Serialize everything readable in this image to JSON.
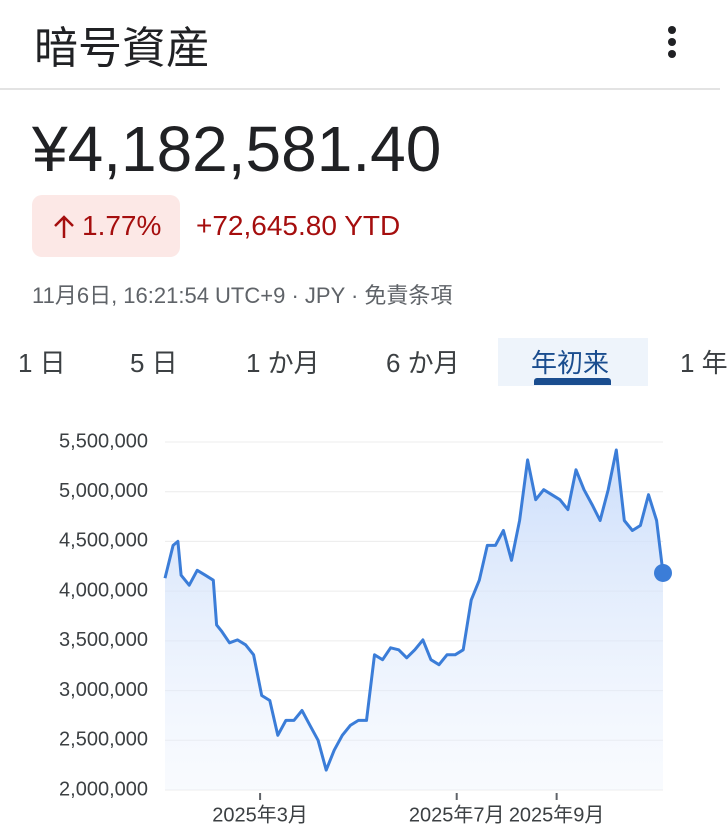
{
  "header": {
    "title": "暗号資産"
  },
  "quote": {
    "price": "¥4,182,581.40",
    "change_percent": "1.77%",
    "change_amount": "+72,645.80 YTD",
    "timestamp": "11月6日, 16:21:54 UTC+9 · JPY · 免責条項"
  },
  "tabs": {
    "items": [
      "1 日",
      "5 日",
      "1 か月",
      "6 か月",
      "年初来",
      "1 年"
    ],
    "selected": 4
  },
  "chart_data": {
    "type": "line",
    "x": [
      0,
      5,
      8,
      10,
      15,
      20,
      25,
      30,
      32,
      35,
      40,
      45,
      50,
      55,
      60,
      65,
      70,
      75,
      80,
      85,
      90,
      95,
      100,
      105,
      110,
      115,
      120,
      125,
      130,
      135,
      140,
      145,
      150,
      155,
      160,
      165,
      170,
      175,
      180,
      185,
      190,
      195,
      200,
      205,
      210,
      215,
      220,
      225,
      230,
      235,
      240,
      245,
      250,
      255,
      260,
      265,
      270,
      275,
      280,
      285,
      290,
      295,
      300,
      305,
      309
    ],
    "series": [
      {
        "color": "#3b7dd8",
        "values": [
          4130000,
          4460000,
          4500000,
          4160000,
          4060000,
          4210000,
          4160000,
          4110000,
          3660000,
          3600000,
          3480000,
          3510000,
          3460000,
          3360000,
          2950000,
          2900000,
          2550000,
          2700000,
          2700000,
          2800000,
          2650000,
          2500000,
          2200000,
          2400000,
          2550000,
          2650000,
          2700000,
          2700000,
          3360000,
          3310000,
          3430000,
          3410000,
          3330000,
          3410000,
          3510000,
          3310000,
          3260000,
          3360000,
          3360000,
          3410000,
          3910000,
          4110000,
          4460000,
          4460000,
          4610000,
          4310000,
          4710000,
          5320000,
          4920000,
          5020000,
          4970000,
          4920000,
          4820000,
          5220000,
          5020000,
          4870000,
          4710000,
          5020000,
          5420000,
          4710000,
          4610000,
          4660000,
          4970000,
          4710000,
          4182581.4
        ]
      }
    ],
    "xlim": [
      0,
      309
    ],
    "xticks": [
      {
        "value": 59,
        "label": "2025年3月"
      },
      {
        "value": 181,
        "label": "2025年7月"
      },
      {
        "value": 243,
        "label": "2025年9月"
      }
    ],
    "ylim": [
      2000000,
      5500000
    ],
    "yticks": [
      {
        "value": 2000000,
        "label": "2,000,000"
      },
      {
        "value": 2500000,
        "label": "2,500,000"
      },
      {
        "value": 3000000,
        "label": "3,000,000"
      },
      {
        "value": 3500000,
        "label": "3,500,000"
      },
      {
        "value": 4000000,
        "label": "4,000,000"
      },
      {
        "value": 4500000,
        "label": "4,500,000"
      },
      {
        "value": 5000000,
        "label": "5,000,000"
      },
      {
        "value": 5500000,
        "label": "5,500,000"
      }
    ],
    "grid": true
  }
}
